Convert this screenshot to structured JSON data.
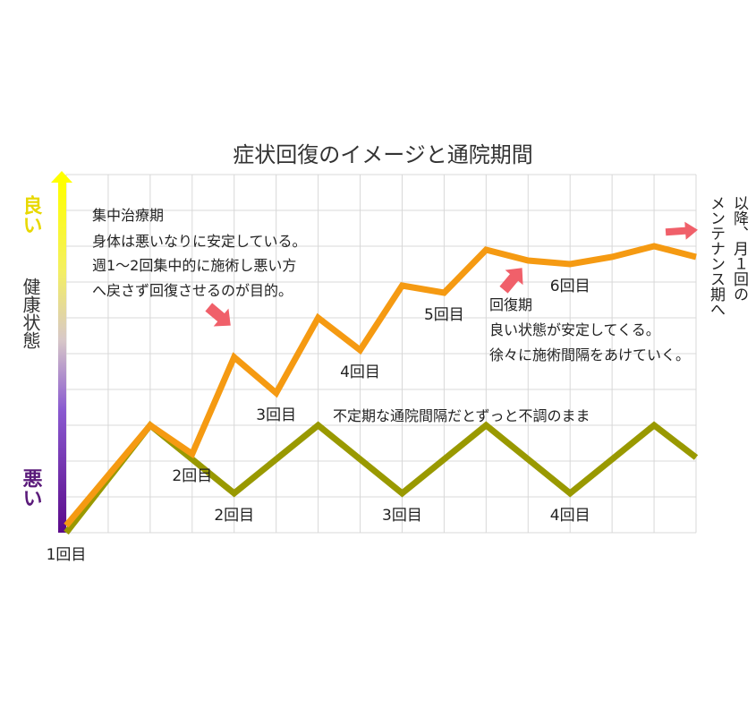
{
  "chart_data": {
    "type": "line",
    "title": "症状回復のイメージと通院期間",
    "y_axis": {
      "top_label": "良い",
      "middle_label": "健康状態",
      "bottom_label": "悪い",
      "colors": {
        "top": "#ffff00",
        "bottom": "#5b0a8a"
      }
    },
    "ylim": [
      0,
      100
    ],
    "xlim": [
      0,
      15
    ],
    "grid": true,
    "series": [
      {
        "key": "treated",
        "color": "#f59a12",
        "points": [
          [
            0,
            2
          ],
          [
            2,
            30
          ],
          [
            3,
            22
          ],
          [
            4,
            49
          ],
          [
            5,
            39
          ],
          [
            6,
            60
          ],
          [
            7,
            51
          ],
          [
            8,
            69
          ],
          [
            9,
            67
          ],
          [
            10,
            79
          ],
          [
            11,
            76
          ],
          [
            12,
            75
          ],
          [
            13,
            77
          ],
          [
            14,
            80
          ],
          [
            15,
            77
          ]
        ]
      },
      {
        "key": "untreated",
        "color": "#999900",
        "points": [
          [
            0,
            0
          ],
          [
            2,
            30
          ],
          [
            4,
            11
          ],
          [
            6,
            30
          ],
          [
            8,
            11
          ],
          [
            10,
            30
          ],
          [
            12,
            11
          ],
          [
            14,
            30
          ],
          [
            15,
            21
          ]
        ]
      }
    ],
    "visit_labels": [
      {
        "text": "1回目",
        "x": 0,
        "y": 0
      },
      {
        "text": "2回目",
        "x": 3,
        "y": 22
      },
      {
        "text": "3回目",
        "x": 5,
        "y": 39
      },
      {
        "text": "4回目",
        "x": 7,
        "y": 51
      },
      {
        "text": "5回目",
        "x": 9,
        "y": 67
      },
      {
        "text": "6回目",
        "x": 12,
        "y": 75
      },
      {
        "text": "2回目",
        "x": 4,
        "y": 11
      },
      {
        "text": "3回目",
        "x": 8,
        "y": 11
      },
      {
        "text": "4回目",
        "x": 12,
        "y": 11
      }
    ],
    "annotations": {
      "intensive": [
        "集中治療期",
        "身体は悪いなりに安定している。",
        "週1～2回集中的に施術し悪い方",
        "へ戻さず回復させるのが目的。"
      ],
      "recovery": [
        "回復期",
        "良い状態が安定してくる。",
        "徐々に施術間隔をあけていく。"
      ],
      "irregular": "不定期な通院間隔だとずっと不調のまま",
      "maintenance": [
        "以降、月１回の",
        "メンテナンス期へ"
      ]
    },
    "arrow_color": "#f0606a"
  }
}
